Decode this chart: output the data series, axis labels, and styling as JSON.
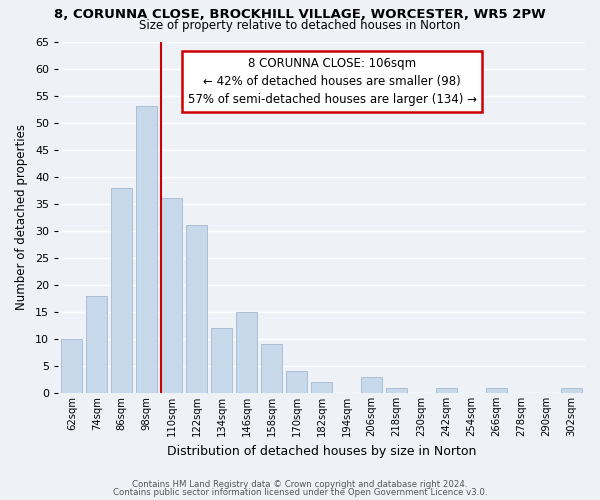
{
  "title": "8, CORUNNA CLOSE, BROCKHILL VILLAGE, WORCESTER, WR5 2PW",
  "subtitle": "Size of property relative to detached houses in Norton",
  "xlabel": "Distribution of detached houses by size in Norton",
  "ylabel": "Number of detached properties",
  "bar_color": "#c8d8eb",
  "bar_edge_color": "#aabfd4",
  "categories": [
    "62sqm",
    "74sqm",
    "86sqm",
    "98sqm",
    "110sqm",
    "122sqm",
    "134sqm",
    "146sqm",
    "158sqm",
    "170sqm",
    "182sqm",
    "194sqm",
    "206sqm",
    "218sqm",
    "230sqm",
    "242sqm",
    "254sqm",
    "266sqm",
    "278sqm",
    "290sqm",
    "302sqm"
  ],
  "values": [
    10,
    18,
    38,
    53,
    36,
    31,
    12,
    15,
    9,
    4,
    2,
    0,
    3,
    1,
    0,
    1,
    0,
    1,
    0,
    0,
    1
  ],
  "ylim": [
    0,
    65
  ],
  "yticks": [
    0,
    5,
    10,
    15,
    20,
    25,
    30,
    35,
    40,
    45,
    50,
    55,
    60,
    65
  ],
  "vline_color": "#cc0000",
  "annotation_text_line1": "8 CORUNNA CLOSE: 106sqm",
  "annotation_text_line2": "← 42% of detached houses are smaller (98)",
  "annotation_text_line3": "57% of semi-detached houses are larger (134) →",
  "annotation_box_facecolor": "#ffffff",
  "annotation_box_edgecolor": "#cc0000",
  "footer_line1": "Contains HM Land Registry data © Crown copyright and database right 2024.",
  "footer_line2": "Contains public sector information licensed under the Open Government Licence v3.0.",
  "background_color": "#eef2f7",
  "grid_color": "#ffffff"
}
